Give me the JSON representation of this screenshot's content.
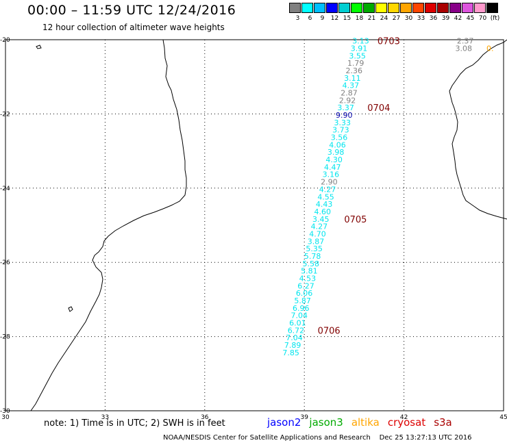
{
  "title": "00:00 – 11:59 UTC 12/24/2016",
  "subtitle": "12 hour collection of altimeter wave heights",
  "scale": {
    "labels": [
      "3",
      "6",
      "9",
      "12",
      "15",
      "18",
      "21",
      "24",
      "27",
      "30",
      "33",
      "36",
      "39",
      "42",
      "45",
      "70",
      "(ft)"
    ],
    "colors": [
      "#808080",
      "#00ffff",
      "#00bfff",
      "#0000ff",
      "#00ced1",
      "#00ff00",
      "#00aa00",
      "#ffff00",
      "#ffd700",
      "#ffa500",
      "#ff4500",
      "#dd0000",
      "#aa0000",
      "#880088",
      "#dd55dd",
      "#ff99cc",
      "#000000"
    ]
  },
  "axes": {
    "lon_ticks": [
      "30",
      "33",
      "36",
      "39",
      "42",
      "45"
    ],
    "lat_ticks": [
      "-20",
      "-22",
      "-24",
      "-26",
      "-28",
      "-30"
    ],
    "lon_range": [
      30,
      45
    ],
    "lat_range": [
      -30,
      -20
    ]
  },
  "chart_data": {
    "type": "scatter",
    "track_points": [
      {
        "lon": 40.95,
        "lat": -20.03,
        "v": "3.13",
        "c": "#00e5ee"
      },
      {
        "lon": 40.9,
        "lat": -20.23,
        "v": "3.91",
        "c": "#00e5ee"
      },
      {
        "lon": 40.85,
        "lat": -20.43,
        "v": "3.55",
        "c": "#00e5ee"
      },
      {
        "lon": 40.8,
        "lat": -20.63,
        "v": "1.79",
        "c": "#808080"
      },
      {
        "lon": 40.75,
        "lat": -20.83,
        "v": "2.36",
        "c": "#808080"
      },
      {
        "lon": 40.7,
        "lat": -21.03,
        "v": "3.11",
        "c": "#00e5ee"
      },
      {
        "lon": 40.65,
        "lat": -21.23,
        "v": "4.37",
        "c": "#00e5ee"
      },
      {
        "lon": 40.6,
        "lat": -21.43,
        "v": "2.87",
        "c": "#808080"
      },
      {
        "lon": 40.55,
        "lat": -21.63,
        "v": "2.92",
        "c": "#808080"
      },
      {
        "lon": 40.5,
        "lat": -21.83,
        "v": "3.37",
        "c": "#00e5ee"
      },
      {
        "lon": 40.45,
        "lat": -22.03,
        "v": "9.90",
        "c": "#0000aa"
      },
      {
        "lon": 40.4,
        "lat": -22.23,
        "v": "3.33",
        "c": "#00e5ee"
      },
      {
        "lon": 40.35,
        "lat": -22.43,
        "v": "3.73",
        "c": "#00e5ee"
      },
      {
        "lon": 40.3,
        "lat": -22.63,
        "v": "3.56",
        "c": "#00e5ee"
      },
      {
        "lon": 40.25,
        "lat": -22.83,
        "v": "4.06",
        "c": "#00e5ee"
      },
      {
        "lon": 40.2,
        "lat": -23.03,
        "v": "3.98",
        "c": "#00e5ee"
      },
      {
        "lon": 40.15,
        "lat": -23.23,
        "v": "4.30",
        "c": "#00e5ee"
      },
      {
        "lon": 40.1,
        "lat": -23.43,
        "v": "4.47",
        "c": "#00e5ee"
      },
      {
        "lon": 40.05,
        "lat": -23.63,
        "v": "3.16",
        "c": "#00e5ee"
      },
      {
        "lon": 40.0,
        "lat": -23.83,
        "v": "2.90",
        "c": "#808080"
      },
      {
        "lon": 39.95,
        "lat": -24.03,
        "v": "4.27",
        "c": "#00e5ee"
      },
      {
        "lon": 39.9,
        "lat": -24.23,
        "v": "4.55",
        "c": "#00e5ee"
      },
      {
        "lon": 39.85,
        "lat": -24.43,
        "v": "4.43",
        "c": "#00e5ee"
      },
      {
        "lon": 39.8,
        "lat": -24.63,
        "v": "4.60",
        "c": "#00e5ee"
      },
      {
        "lon": 39.75,
        "lat": -24.83,
        "v": "3.45",
        "c": "#00e5ee"
      },
      {
        "lon": 39.7,
        "lat": -25.03,
        "v": "4.27",
        "c": "#00e5ee"
      },
      {
        "lon": 39.65,
        "lat": -25.23,
        "v": "4.70",
        "c": "#00e5ee"
      },
      {
        "lon": 39.6,
        "lat": -25.43,
        "v": "3.87",
        "c": "#00e5ee"
      },
      {
        "lon": 39.55,
        "lat": -25.63,
        "v": "5.35",
        "c": "#00e5ee"
      },
      {
        "lon": 39.5,
        "lat": -25.83,
        "v": "5.78",
        "c": "#00e5ee"
      },
      {
        "lon": 39.45,
        "lat": -26.03,
        "v": "5.58",
        "c": "#00e5ee"
      },
      {
        "lon": 39.4,
        "lat": -26.23,
        "v": "5.81",
        "c": "#00e5ee"
      },
      {
        "lon": 39.35,
        "lat": -26.43,
        "v": "4.53",
        "c": "#00e5ee"
      },
      {
        "lon": 39.3,
        "lat": -26.63,
        "v": "6.27",
        "c": "#00e5ee"
      },
      {
        "lon": 39.25,
        "lat": -26.83,
        "v": "6.06",
        "c": "#00e5ee"
      },
      {
        "lon": 39.2,
        "lat": -27.03,
        "v": "5.87",
        "c": "#00e5ee"
      },
      {
        "lon": 39.15,
        "lat": -27.23,
        "v": "6.96",
        "c": "#00e5ee"
      },
      {
        "lon": 39.1,
        "lat": -27.43,
        "v": "7.04",
        "c": "#00e5ee"
      },
      {
        "lon": 39.05,
        "lat": -27.63,
        "v": "6.01",
        "c": "#00e5ee"
      },
      {
        "lon": 39.0,
        "lat": -27.83,
        "v": "6.72",
        "c": "#00e5ee"
      },
      {
        "lon": 38.95,
        "lat": -28.03,
        "v": "7.04",
        "c": "#00e5ee"
      },
      {
        "lon": 38.9,
        "lat": -28.23,
        "v": "7.89",
        "c": "#00e5ee"
      },
      {
        "lon": 38.85,
        "lat": -28.43,
        "v": "7.85",
        "c": "#00e5ee"
      },
      {
        "lon": 44.1,
        "lat": -20.03,
        "v": "2.37",
        "c": "#808080"
      },
      {
        "lon": 44.05,
        "lat": -20.23,
        "v": "3.08",
        "c": "#808080"
      },
      {
        "lon": 44.7,
        "lat": -20.23,
        "v": "0.",
        "c": "#ffa500"
      }
    ],
    "time_labels": [
      {
        "lon": 41.2,
        "lat": -20.03,
        "t": "0703"
      },
      {
        "lon": 40.9,
        "lat": -21.83,
        "t": "0704"
      },
      {
        "lon": 40.2,
        "lat": -24.83,
        "t": "0705"
      },
      {
        "lon": 39.4,
        "lat": -27.83,
        "t": "0706"
      }
    ]
  },
  "note": "note: 1) Time is in UTC; 2) SWH is in feet",
  "legend": [
    {
      "name": "jason2",
      "color": "#0000ff"
    },
    {
      "name": "jason3",
      "color": "#00aa00"
    },
    {
      "name": "altika",
      "color": "#ffa500"
    },
    {
      "name": "cryosat",
      "color": "#dd0000"
    },
    {
      "name": "s3a",
      "color": "#aa0000"
    }
  ],
  "credit": "NOAA/NESDIS Center for Satellite Applications and Research    Dec 25 13:27:13 UTC 2016",
  "colors": {
    "time_label": "#800000",
    "grid": "#000000",
    "coast": "#000000"
  }
}
